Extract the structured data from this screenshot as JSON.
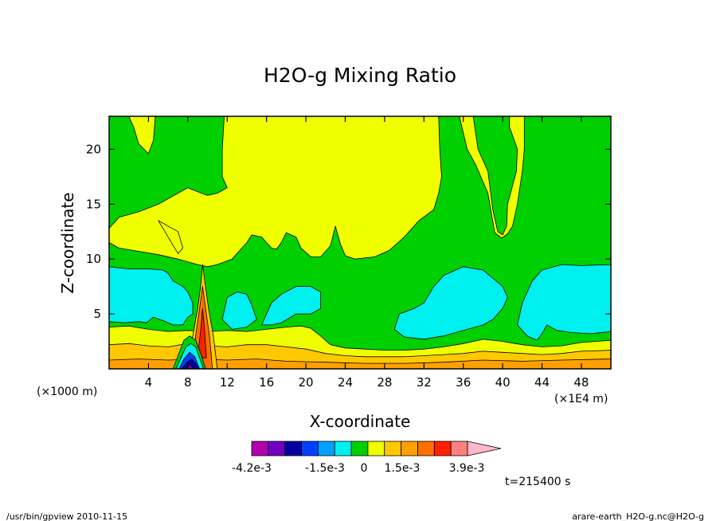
{
  "chart_data": {
    "type": "heatmap",
    "title": "H2O-g Mixing Ratio",
    "xlabel": "X-coordinate",
    "ylabel": "Z-coordinate",
    "x_unit": "(×1E4 m)",
    "z_unit": "(×1000 m)",
    "xlim": [
      0,
      51
    ],
    "ylim": [
      0,
      23
    ],
    "x_ticks": [
      4,
      8,
      12,
      16,
      20,
      24,
      28,
      32,
      36,
      40,
      44,
      48
    ],
    "y_ticks": [
      5,
      10,
      15,
      20
    ],
    "time_label": "t=215400 s",
    "colorbar": {
      "colors": [
        "#b000b0",
        "#7000c0",
        "#0000a0",
        "#0040ff",
        "#00a0ff",
        "#00f0f0",
        "#00d000",
        "#f0ff00",
        "#ffc800",
        "#ffa000",
        "#ff7000",
        "#ff2000",
        "#ff8080",
        "#ffb8c8"
      ],
      "labels": [
        "-4.2e-3",
        "-1.5e-3",
        "0",
        "1.5e-3",
        "3.9e-3"
      ]
    },
    "regions": [
      {
        "name": "background",
        "color": "#00d000",
        "points": [
          [
            0,
            0
          ],
          [
            51,
            0
          ],
          [
            51,
            23
          ],
          [
            0,
            23
          ]
        ]
      },
      {
        "name": "yellow-upper-band",
        "color": "#f0ff00",
        "points": [
          [
            0,
            11.5
          ],
          [
            0,
            12.8
          ],
          [
            1,
            13.8
          ],
          [
            3,
            14.3
          ],
          [
            5,
            15
          ],
          [
            7,
            16
          ],
          [
            8,
            16.5
          ],
          [
            8.5,
            16.3
          ],
          [
            10,
            15.8
          ],
          [
            11,
            16
          ],
          [
            12,
            16.5
          ],
          [
            11.5,
            17.5
          ],
          [
            11.5,
            20
          ],
          [
            11.7,
            23
          ],
          [
            37,
            23
          ],
          [
            37.5,
            20
          ],
          [
            38.5,
            18
          ],
          [
            39,
            14.5
          ],
          [
            39.5,
            12.5
          ],
          [
            40,
            12.2
          ],
          [
            40.4,
            13
          ],
          [
            40.5,
            15
          ],
          [
            41.4,
            18
          ],
          [
            41.5,
            20
          ],
          [
            40.7,
            22
          ],
          [
            40.7,
            23
          ],
          [
            42.2,
            23
          ],
          [
            42.2,
            20
          ],
          [
            42,
            18
          ],
          [
            41.5,
            15
          ],
          [
            41,
            13
          ],
          [
            40.5,
            12.3
          ],
          [
            39.9,
            11.9
          ],
          [
            39.2,
            12.4
          ],
          [
            38.5,
            16
          ],
          [
            37.3,
            18.5
          ],
          [
            36.4,
            20
          ],
          [
            35.6,
            23
          ],
          [
            33.5,
            23
          ],
          [
            33.6,
            20
          ],
          [
            33.8,
            17.5
          ],
          [
            33.5,
            16
          ],
          [
            33,
            14.5
          ],
          [
            31.5,
            13.5
          ],
          [
            30,
            12
          ],
          [
            28.5,
            10.8
          ],
          [
            27,
            10.2
          ],
          [
            25,
            10
          ],
          [
            24,
            10.3
          ],
          [
            23.5,
            11.4
          ],
          [
            23,
            13
          ],
          [
            22.5,
            11.2
          ],
          [
            21.5,
            10.2
          ],
          [
            20.5,
            10.2
          ],
          [
            19.5,
            11
          ],
          [
            19,
            12
          ],
          [
            18,
            12.4
          ],
          [
            17.5,
            11.5
          ],
          [
            17,
            10.9
          ],
          [
            16.5,
            11
          ],
          [
            15.5,
            12
          ],
          [
            14.5,
            12.2
          ],
          [
            14,
            11.5
          ],
          [
            13.5,
            11
          ],
          [
            13,
            10.5
          ],
          [
            12.5,
            10
          ],
          [
            11,
            9.5
          ],
          [
            10,
            9.3
          ],
          [
            9,
            9.5
          ],
          [
            7,
            10
          ],
          [
            5,
            10.4
          ],
          [
            3,
            10.7
          ],
          [
            1,
            11
          ]
        ]
      },
      {
        "name": "yellow-top-left-tongue",
        "color": "#f0ff00",
        "points": [
          [
            2,
            23
          ],
          [
            2.5,
            22
          ],
          [
            3,
            20.5
          ],
          [
            4,
            19.6
          ],
          [
            4.5,
            20.8
          ],
          [
            4.7,
            23
          ]
        ]
      },
      {
        "name": "yellow-mid-left-blob",
        "color": "#f0ff00",
        "points": [
          [
            5,
            13.5
          ],
          [
            6,
            13
          ],
          [
            7,
            12.5
          ],
          [
            7.5,
            11
          ],
          [
            7,
            10.5
          ]
        ]
      },
      {
        "name": "cyan-left",
        "color": "#00f0f0",
        "points": [
          [
            0,
            4.3
          ],
          [
            0,
            9.3
          ],
          [
            2,
            9.1
          ],
          [
            4,
            9.1
          ],
          [
            5.5,
            9
          ],
          [
            6,
            8.7
          ],
          [
            6.5,
            8
          ],
          [
            7.5,
            7.5
          ],
          [
            8,
            7
          ],
          [
            8.5,
            6
          ],
          [
            8.5,
            5
          ],
          [
            8,
            4.7
          ],
          [
            7.5,
            4
          ],
          [
            6.5,
            4
          ],
          [
            5.5,
            4.4
          ],
          [
            4.5,
            4.7
          ],
          [
            3.8,
            4.2
          ],
          [
            3,
            4.3
          ],
          [
            1.5,
            4.2
          ]
        ]
      },
      {
        "name": "cyan-left-blob",
        "color": "#00f0f0",
        "points": [
          [
            11.5,
            4.5
          ],
          [
            12,
            6.5
          ],
          [
            13,
            7
          ],
          [
            14,
            6.8
          ],
          [
            14.5,
            5.8
          ],
          [
            15,
            4.5
          ],
          [
            14,
            3.8
          ],
          [
            12.5,
            3.6
          ]
        ]
      },
      {
        "name": "cyan-middle",
        "color": "#00f0f0",
        "points": [
          [
            15.5,
            4
          ],
          [
            16.5,
            6
          ],
          [
            17.5,
            6.8
          ],
          [
            19,
            7.5
          ],
          [
            20.5,
            7.5
          ],
          [
            21.5,
            7
          ],
          [
            21.5,
            5.5
          ],
          [
            20.5,
            5
          ],
          [
            19,
            5
          ],
          [
            17.5,
            4.2
          ],
          [
            16.5,
            4
          ]
        ]
      },
      {
        "name": "cyan-right-1",
        "color": "#00f0f0",
        "points": [
          [
            29,
            3.6
          ],
          [
            29.5,
            5
          ],
          [
            31,
            5.5
          ],
          [
            32,
            6
          ],
          [
            33,
            7.5
          ],
          [
            34,
            8.5
          ],
          [
            36,
            9.3
          ],
          [
            38,
            9
          ],
          [
            40,
            7.5
          ],
          [
            40.5,
            6.5
          ],
          [
            40,
            5.5
          ],
          [
            39,
            4.5
          ],
          [
            38,
            4
          ],
          [
            36,
            3.5
          ],
          [
            34,
            3
          ],
          [
            32,
            2.7
          ],
          [
            30,
            2.9
          ]
        ]
      },
      {
        "name": "cyan-right-2",
        "color": "#00f0f0",
        "points": [
          [
            41.5,
            4
          ],
          [
            42,
            6
          ],
          [
            42.5,
            7
          ],
          [
            43,
            8
          ],
          [
            44,
            9
          ],
          [
            46,
            9.5
          ],
          [
            48,
            9.4
          ],
          [
            51,
            9.5
          ],
          [
            51,
            3.4
          ],
          [
            49,
            3.2
          ],
          [
            47,
            3.3
          ],
          [
            45.5,
            3.5
          ],
          [
            44.5,
            4
          ],
          [
            44,
            3.2
          ],
          [
            43.5,
            2.6
          ],
          [
            42.5,
            3
          ]
        ]
      },
      {
        "name": "yellow-low-band",
        "color": "#f0ff00",
        "points": [
          [
            0,
            1.5
          ],
          [
            0,
            3.8
          ],
          [
            2,
            3.9
          ],
          [
            4,
            3.6
          ],
          [
            6,
            3.4
          ],
          [
            8,
            3.5
          ],
          [
            10,
            3.4
          ],
          [
            12,
            3.5
          ],
          [
            14,
            3.4
          ],
          [
            16,
            3.6
          ],
          [
            18,
            3.8
          ],
          [
            19.5,
            3.9
          ],
          [
            20.5,
            3.7
          ],
          [
            21.5,
            3
          ],
          [
            22.5,
            2.2
          ],
          [
            24,
            1.9
          ],
          [
            26,
            1.8
          ],
          [
            28,
            1.7
          ],
          [
            30,
            1.7
          ],
          [
            32,
            1.8
          ],
          [
            34,
            2
          ],
          [
            36,
            2.3
          ],
          [
            38,
            2.7
          ],
          [
            40,
            2.5
          ],
          [
            42,
            2.2
          ],
          [
            44,
            2
          ],
          [
            46,
            2.1
          ],
          [
            48,
            2.4
          ],
          [
            51,
            2.6
          ],
          [
            51,
            0
          ],
          [
            0,
            0
          ]
        ]
      },
      {
        "name": "orange-low-band",
        "color": "#ffc800",
        "points": [
          [
            0,
            0
          ],
          [
            0,
            2.2
          ],
          [
            2,
            2.3
          ],
          [
            4,
            2.1
          ],
          [
            6,
            2
          ],
          [
            8,
            2.3
          ],
          [
            10,
            2.1
          ],
          [
            12,
            2
          ],
          [
            14,
            2.2
          ],
          [
            16,
            2.2
          ],
          [
            18,
            2
          ],
          [
            20,
            1.8
          ],
          [
            22,
            1.4
          ],
          [
            24,
            1.2
          ],
          [
            26,
            1.1
          ],
          [
            28,
            1.1
          ],
          [
            30,
            1.1
          ],
          [
            32,
            1.2
          ],
          [
            34,
            1.3
          ],
          [
            36,
            1.4
          ],
          [
            38,
            1.6
          ],
          [
            40,
            1.5
          ],
          [
            42,
            1.4
          ],
          [
            44,
            1.3
          ],
          [
            46,
            1.4
          ],
          [
            48,
            1.6
          ],
          [
            51,
            1.7
          ],
          [
            51,
            0
          ]
        ]
      },
      {
        "name": "dark-orange-floor",
        "color": "#ffa000",
        "points": [
          [
            0,
            0
          ],
          [
            0,
            0.8
          ],
          [
            3,
            0.9
          ],
          [
            6,
            0.8
          ],
          [
            9,
            0.9
          ],
          [
            12,
            0.8
          ],
          [
            15,
            0.9
          ],
          [
            18,
            0.7
          ],
          [
            22,
            0.6
          ],
          [
            26,
            0.5
          ],
          [
            30,
            0.5
          ],
          [
            34,
            0.6
          ],
          [
            38,
            0.8
          ],
          [
            42,
            0.7
          ],
          [
            46,
            0.8
          ],
          [
            51,
            0.9
          ],
          [
            51,
            0
          ]
        ]
      },
      {
        "name": "plume-outer",
        "color": "#ffc800",
        "points": [
          [
            8,
            0
          ],
          [
            8.5,
            3
          ],
          [
            9,
            5.5
          ],
          [
            9.3,
            7.5
          ],
          [
            9.5,
            9.5
          ],
          [
            9.8,
            7.5
          ],
          [
            10.1,
            5.5
          ],
          [
            10.6,
            3
          ],
          [
            11,
            0
          ]
        ]
      },
      {
        "name": "plume-orange",
        "color": "#ff7000",
        "points": [
          [
            8.5,
            0
          ],
          [
            8.8,
            3
          ],
          [
            9.2,
            5.5
          ],
          [
            9.5,
            7.5
          ],
          [
            9.8,
            5.5
          ],
          [
            10.2,
            3
          ],
          [
            10.5,
            0
          ]
        ]
      },
      {
        "name": "plume-red",
        "color": "#ff2000",
        "points": [
          [
            9,
            1
          ],
          [
            9.3,
            3.5
          ],
          [
            9.5,
            5.5
          ],
          [
            9.7,
            3.5
          ],
          [
            9.9,
            1
          ]
        ]
      },
      {
        "name": "plume-base-green",
        "color": "#00d000",
        "points": [
          [
            6.5,
            0
          ],
          [
            7,
            1.2
          ],
          [
            7.6,
            2.6
          ],
          [
            8.2,
            3
          ],
          [
            8.8,
            2.6
          ],
          [
            9.4,
            1.2
          ],
          [
            9.8,
            0
          ]
        ]
      },
      {
        "name": "plume-base-cyan",
        "color": "#00f0f0",
        "points": [
          [
            6.8,
            0
          ],
          [
            7.3,
            1
          ],
          [
            7.8,
            2
          ],
          [
            8.3,
            2.3
          ],
          [
            8.8,
            2
          ],
          [
            9.2,
            1
          ],
          [
            9.6,
            0
          ]
        ]
      },
      {
        "name": "plume-base-blue",
        "color": "#0040ff",
        "points": [
          [
            7.1,
            0
          ],
          [
            7.6,
            0.9
          ],
          [
            8.2,
            1.5
          ],
          [
            8.7,
            1.1
          ],
          [
            9.2,
            0
          ]
        ]
      },
      {
        "name": "plume-base-navy",
        "color": "#0000a0",
        "points": [
          [
            7.4,
            0
          ],
          [
            7.9,
            0.6
          ],
          [
            8.4,
            0.9
          ],
          [
            8.8,
            0.5
          ],
          [
            9.1,
            0
          ]
        ]
      },
      {
        "name": "plume-base-purple",
        "color": "#7000c0",
        "points": [
          [
            7.8,
            0
          ],
          [
            8.2,
            0.4
          ],
          [
            8.6,
            0
          ]
        ]
      }
    ]
  },
  "footer": {
    "left": "/usr/bin/gpview  2010-11-15",
    "right": "arare-earth_H2O-g.nc@H2O-g"
  }
}
